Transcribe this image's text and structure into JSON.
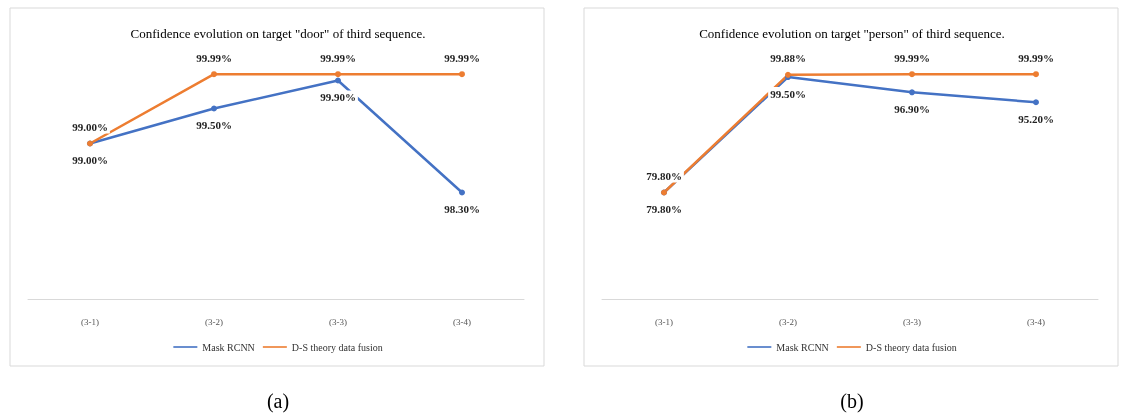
{
  "chart_data": [
    {
      "type": "line",
      "title": "Confidence evolution on target \"door\" of third sequence.",
      "categories": [
        "(3-1)",
        "(3-2)",
        "(3-3)",
        "(3-4)"
      ],
      "series": [
        {
          "name": "Mask RCNN",
          "color": "#4472c4",
          "values": [
            99.0,
            99.5,
            99.9,
            98.3
          ],
          "value_labels": [
            "99.00%",
            "99.50%",
            "99.90%",
            "98.30%"
          ]
        },
        {
          "name": "D-S theory data fusion",
          "color": "#ed7d31",
          "values": [
            99.0,
            99.99,
            99.99,
            99.99
          ],
          "value_labels": [
            "99.00%",
            "99.99%",
            "99.99%",
            "99.99%"
          ]
        }
      ],
      "marker": "circle",
      "legend": "bottom",
      "grid": false,
      "tick_labels": "x",
      "annotations": [
        "(a)"
      ]
    },
    {
      "type": "line",
      "title": "Confidence evolution on target \"person\" of third sequence.",
      "categories": [
        "(3-1)",
        "(3-2)",
        "(3-3)",
        "(3-4)"
      ],
      "series": [
        {
          "name": "Mask RCNN",
          "color": "#4472c4",
          "values": [
            79.8,
            99.5,
            96.9,
            95.2
          ],
          "value_labels": [
            "79.80%",
            "99.50%",
            "96.90%",
            "95.20%"
          ]
        },
        {
          "name": "D-S theory data fusion",
          "color": "#ed7d31",
          "values": [
            79.8,
            99.88,
            99.99,
            99.99
          ],
          "value_labels": [
            "79.80%",
            "99.88%",
            "99.99%",
            "99.99%"
          ]
        }
      ],
      "marker": "circle",
      "legend": "bottom",
      "grid": false,
      "tick_labels": "x",
      "annotations": [
        "(b)"
      ]
    }
  ]
}
